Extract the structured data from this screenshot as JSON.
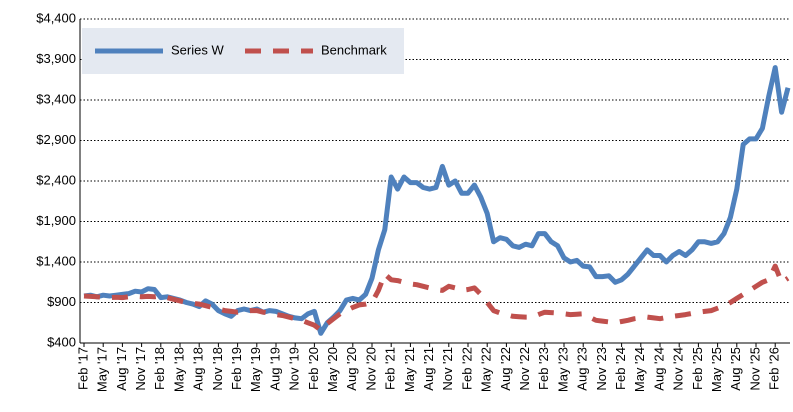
{
  "chart_data": {
    "type": "line",
    "categories": [
      "Feb '17",
      null,
      null,
      "May '17",
      null,
      null,
      "Aug '17",
      null,
      null,
      "Nov '17",
      null,
      null,
      "Feb '18",
      null,
      null,
      "May '18",
      null,
      null,
      "Aug '18",
      null,
      null,
      "Nov '18",
      null,
      null,
      "Feb '19",
      null,
      null,
      "May '19",
      null,
      null,
      "Aug '19",
      null,
      null,
      "Nov '19",
      null,
      null,
      "Feb '20",
      null,
      null,
      "May '20",
      null,
      null,
      "Aug '20",
      null,
      null,
      "Nov '20",
      null,
      null,
      "Feb '21",
      null,
      null,
      "May '21",
      null,
      null,
      "Aug '21",
      null,
      null,
      "Nov '21",
      null,
      null,
      "Feb '22",
      null,
      null,
      "May '22",
      null,
      null,
      "Aug '22",
      null,
      null,
      "Nov '22",
      null,
      null,
      "Feb '23",
      null,
      null,
      "May '23",
      null,
      null,
      "Aug '23",
      null,
      null,
      "Nov '23",
      null,
      null,
      "Feb '24",
      null,
      null,
      "May '24",
      null,
      null,
      "Aug '24",
      null,
      null,
      "Nov '24",
      null,
      null,
      "Feb '25",
      null,
      null,
      "May '25",
      null,
      null,
      "Aug '25",
      null,
      null,
      "Nov '25",
      null,
      null,
      "Feb '26",
      null,
      null
    ],
    "series": [
      {
        "name": "Series W",
        "color": "#4f81bd",
        "dashed": false,
        "values": [
          980,
          990,
          970,
          990,
          980,
          990,
          1000,
          1010,
          1040,
          1030,
          1070,
          1060,
          960,
          970,
          950,
          930,
          900,
          880,
          850,
          920,
          880,
          800,
          760,
          730,
          800,
          820,
          800,
          820,
          780,
          800,
          790,
          760,
          730,
          710,
          700,
          760,
          790,
          520,
          650,
          720,
          800,
          930,
          950,
          930,
          1000,
          1200,
          1550,
          1800,
          2450,
          2300,
          2450,
          2380,
          2380,
          2320,
          2300,
          2320,
          2580,
          2350,
          2400,
          2250,
          2250,
          2350,
          2200,
          2000,
          1650,
          1700,
          1680,
          1600,
          1580,
          1620,
          1600,
          1750,
          1750,
          1650,
          1600,
          1450,
          1400,
          1420,
          1350,
          1340,
          1220,
          1220,
          1230,
          1150,
          1180,
          1250,
          1350,
          1450,
          1550,
          1480,
          1480,
          1400,
          1480,
          1530,
          1480,
          1550,
          1650,
          1650,
          1630,
          1650,
          1750,
          1950,
          2300,
          2850,
          2920,
          2920,
          3050,
          3450,
          3800,
          3250,
          3550
        ]
      },
      {
        "name": "Benchmark",
        "color": "#c0504d",
        "dashed": true,
        "values": [
          980,
          975,
          970,
          960,
          960,
          965,
          960,
          970,
          975,
          970,
          975,
          970,
          980,
          960,
          940,
          920,
          900,
          890,
          880,
          860,
          840,
          820,
          800,
          790,
          780,
          790,
          800,
          800,
          780,
          770,
          750,
          740,
          720,
          700,
          680,
          650,
          620,
          560,
          640,
          700,
          760,
          800,
          840,
          870,
          880,
          900,
          1050,
          1250,
          1180,
          1170,
          1150,
          1130,
          1120,
          1100,
          1080,
          1060,
          1050,
          1100,
          1080,
          1050,
          1060,
          1080,
          1000,
          900,
          800,
          770,
          750,
          730,
          725,
          720,
          720,
          750,
          780,
          775,
          770,
          760,
          750,
          755,
          760,
          720,
          680,
          670,
          660,
          650,
          665,
          680,
          700,
          710,
          720,
          710,
          700,
          715,
          730,
          740,
          750,
          765,
          780,
          790,
          800,
          830,
          860,
          900,
          950,
          1000,
          1050,
          1100,
          1150,
          1180,
          1350,
          1150,
          1200
        ]
      }
    ],
    "ylim": [
      400,
      4400
    ],
    "yticks": [
      {
        "value": 400,
        "label": "$400"
      },
      {
        "value": 900,
        "label": "$900"
      },
      {
        "value": 1400,
        "label": "$1,400"
      },
      {
        "value": 1900,
        "label": "$1,900"
      },
      {
        "value": 2400,
        "label": "$2,400"
      },
      {
        "value": 2900,
        "label": "$2,900"
      },
      {
        "value": 3400,
        "label": "$3,400"
      },
      {
        "value": 3900,
        "label": "$3,900"
      },
      {
        "value": 4400,
        "label": "$4,400"
      }
    ],
    "grid": true,
    "legend": "top-left"
  }
}
